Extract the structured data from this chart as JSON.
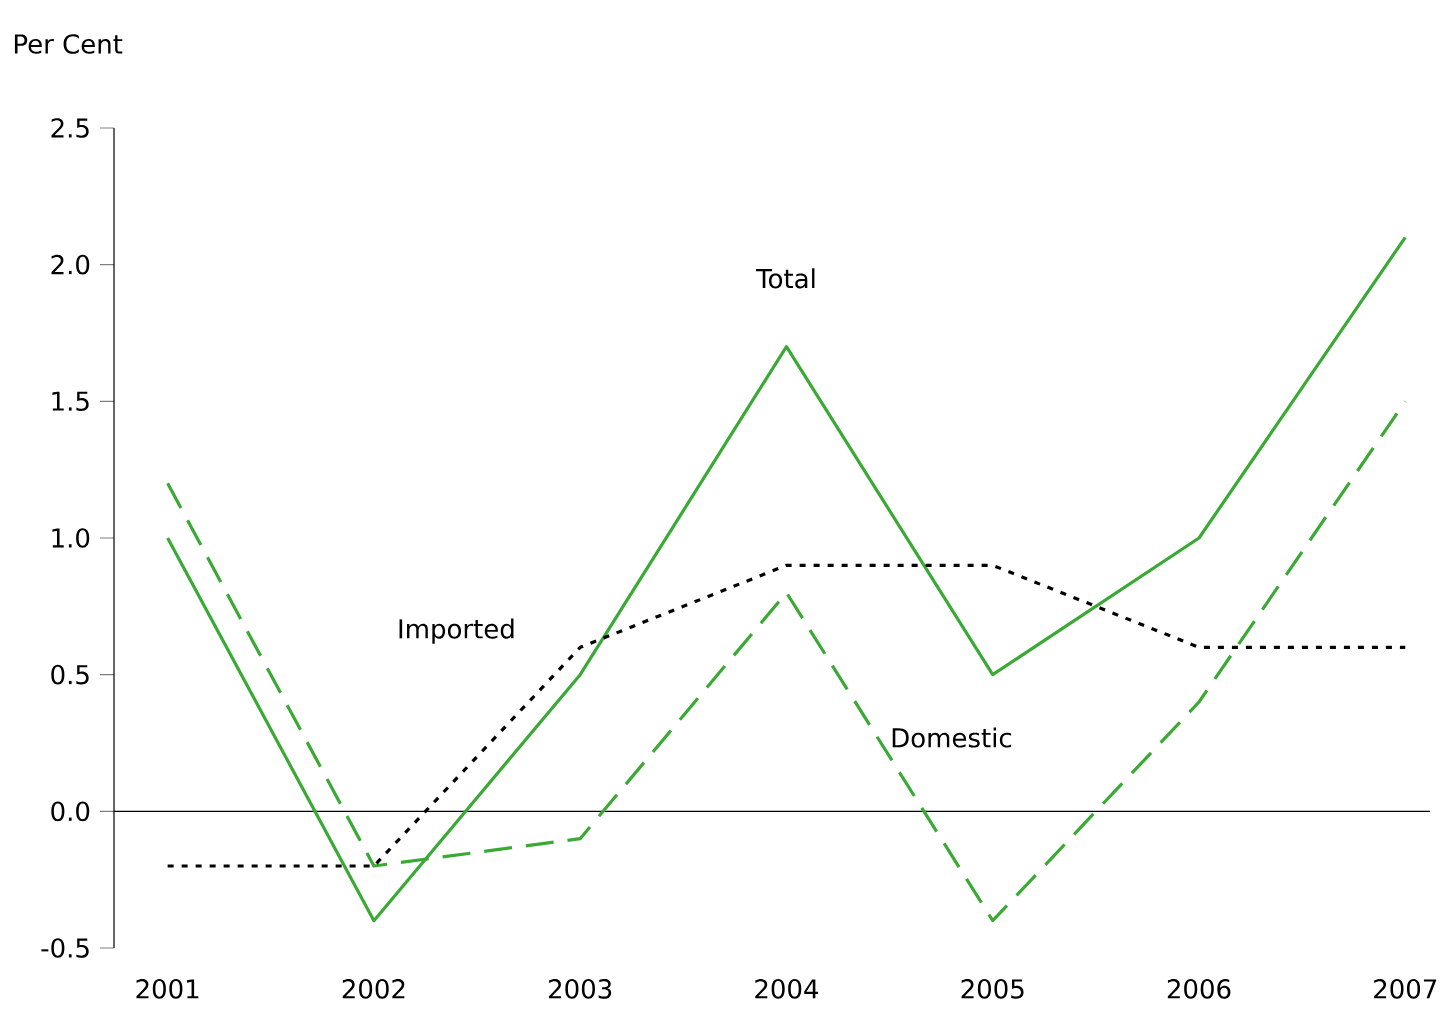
{
  "chart_data": {
    "type": "line",
    "ylabel": "Per Cent",
    "categories": [
      "2001",
      "2002",
      "2003",
      "2004",
      "2005",
      "2006",
      "2007"
    ],
    "ylim": [
      -0.5,
      2.5
    ],
    "yticks": [
      {
        "value": -0.5,
        "label": "-0.5"
      },
      {
        "value": 0,
        "label": "0.0"
      },
      {
        "value": 0.5,
        "label": "0.5"
      },
      {
        "value": 1,
        "label": "1.0"
      },
      {
        "value": 1.5,
        "label": "1.5"
      },
      {
        "value": 2,
        "label": "2.0"
      },
      {
        "value": 2.5,
        "label": "2.5"
      }
    ],
    "series": [
      {
        "name": "Total",
        "color": "#3aaa35",
        "line_style": "solid",
        "values": [
          1.0,
          -0.4,
          0.5,
          1.7,
          0.5,
          1.0,
          2.1
        ]
      },
      {
        "name": "Domestic",
        "color": "#3aaa35",
        "line_style": "dashed",
        "values": [
          1.2,
          -0.2,
          -0.1,
          0.8,
          -0.4,
          0.4,
          1.5
        ]
      },
      {
        "name": "Imported",
        "color": "#000000",
        "line_style": "dotted",
        "values": [
          -0.2,
          -0.2,
          0.6,
          0.9,
          0.9,
          0.6,
          0.6
        ]
      }
    ],
    "ref_lines": [
      {
        "axis": "y",
        "value": 0,
        "color": "#000000"
      }
    ],
    "grid": false,
    "marker": "none"
  }
}
